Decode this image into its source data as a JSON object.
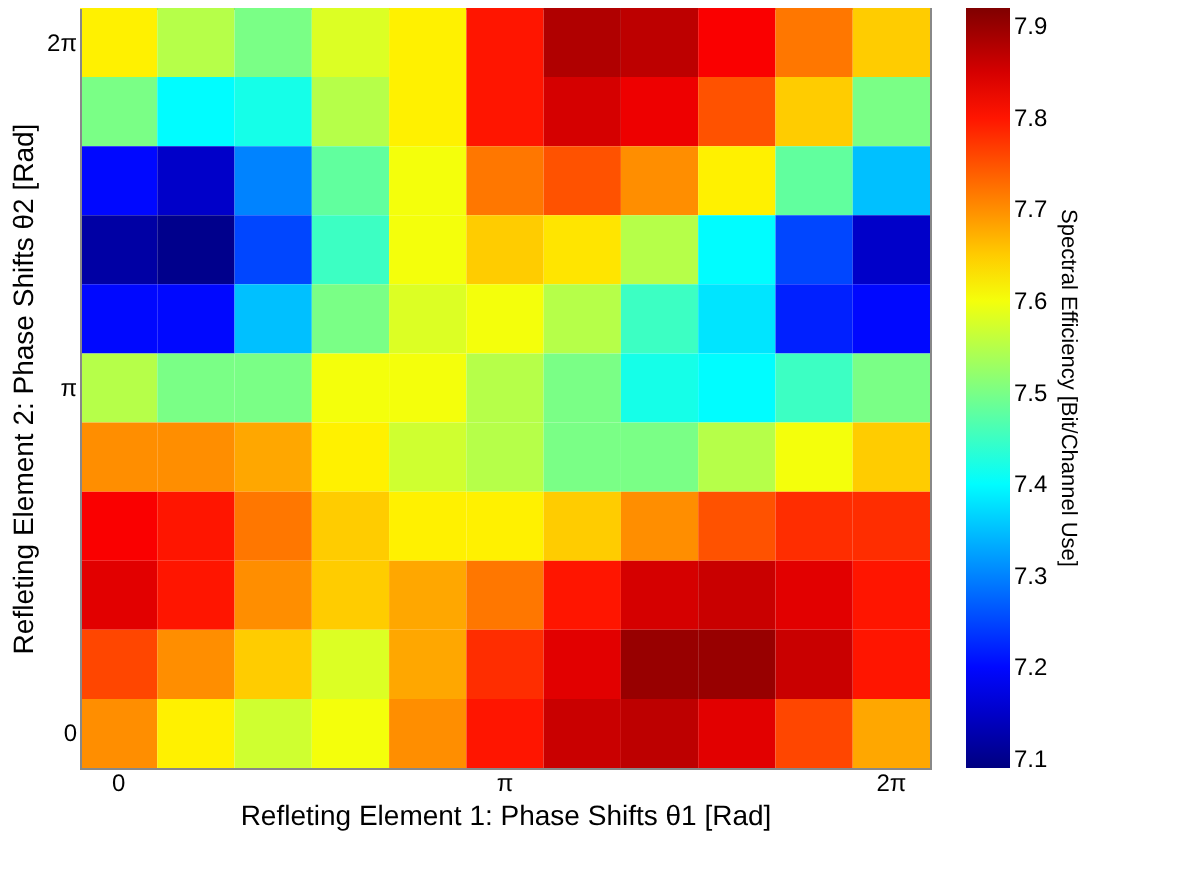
{
  "chart_data": {
    "type": "heatmap",
    "xlabel": "Refleting Element 1: Phase Shifts  θ1 [Rad]",
    "ylabel": "Refleting Element 2: Phase Shifts  θ2 [Rad]",
    "clabel": "Spectral Efficiency [Bit/Channel Use]",
    "categories": [
      "0",
      null,
      null,
      null,
      null,
      "π",
      null,
      null,
      null,
      null,
      "2π"
    ],
    "y_categories": [
      "2π",
      null,
      null,
      null,
      null,
      "π",
      null,
      null,
      null,
      null,
      "0"
    ],
    "cells": [
      [
        7.62,
        7.55,
        7.5,
        7.58,
        7.62,
        7.8,
        7.88,
        7.87,
        7.82,
        7.72,
        7.65
      ],
      [
        7.5,
        7.4,
        7.42,
        7.55,
        7.62,
        7.8,
        7.85,
        7.83,
        7.75,
        7.65,
        7.5
      ],
      [
        7.2,
        7.15,
        7.3,
        7.48,
        7.6,
        7.72,
        7.75,
        7.7,
        7.62,
        7.48,
        7.35
      ],
      [
        7.12,
        7.1,
        7.25,
        7.45,
        7.6,
        7.65,
        7.63,
        7.55,
        7.4,
        7.25,
        7.15
      ],
      [
        7.2,
        7.2,
        7.35,
        7.5,
        7.58,
        7.6,
        7.55,
        7.45,
        7.38,
        7.22,
        7.2
      ],
      [
        7.55,
        7.5,
        7.5,
        7.6,
        7.6,
        7.55,
        7.5,
        7.42,
        7.4,
        7.45,
        7.5
      ],
      [
        7.7,
        7.7,
        7.68,
        7.62,
        7.57,
        7.55,
        7.5,
        7.5,
        7.55,
        7.6,
        7.65
      ],
      [
        7.82,
        7.8,
        7.72,
        7.65,
        7.62,
        7.62,
        7.65,
        7.7,
        7.75,
        7.78,
        7.78
      ],
      [
        7.84,
        7.8,
        7.7,
        7.65,
        7.68,
        7.72,
        7.8,
        7.85,
        7.86,
        7.84,
        7.8
      ],
      [
        7.76,
        7.7,
        7.65,
        7.58,
        7.68,
        7.78,
        7.84,
        7.9,
        7.9,
        7.86,
        7.8
      ],
      [
        7.7,
        7.62,
        7.57,
        7.6,
        7.7,
        7.8,
        7.86,
        7.87,
        7.84,
        7.76,
        7.68
      ]
    ],
    "clim": [
      7.09,
      7.92
    ],
    "cticks": [
      7.1,
      7.2,
      7.3,
      7.4,
      7.5,
      7.6,
      7.7,
      7.8,
      7.9
    ]
  }
}
